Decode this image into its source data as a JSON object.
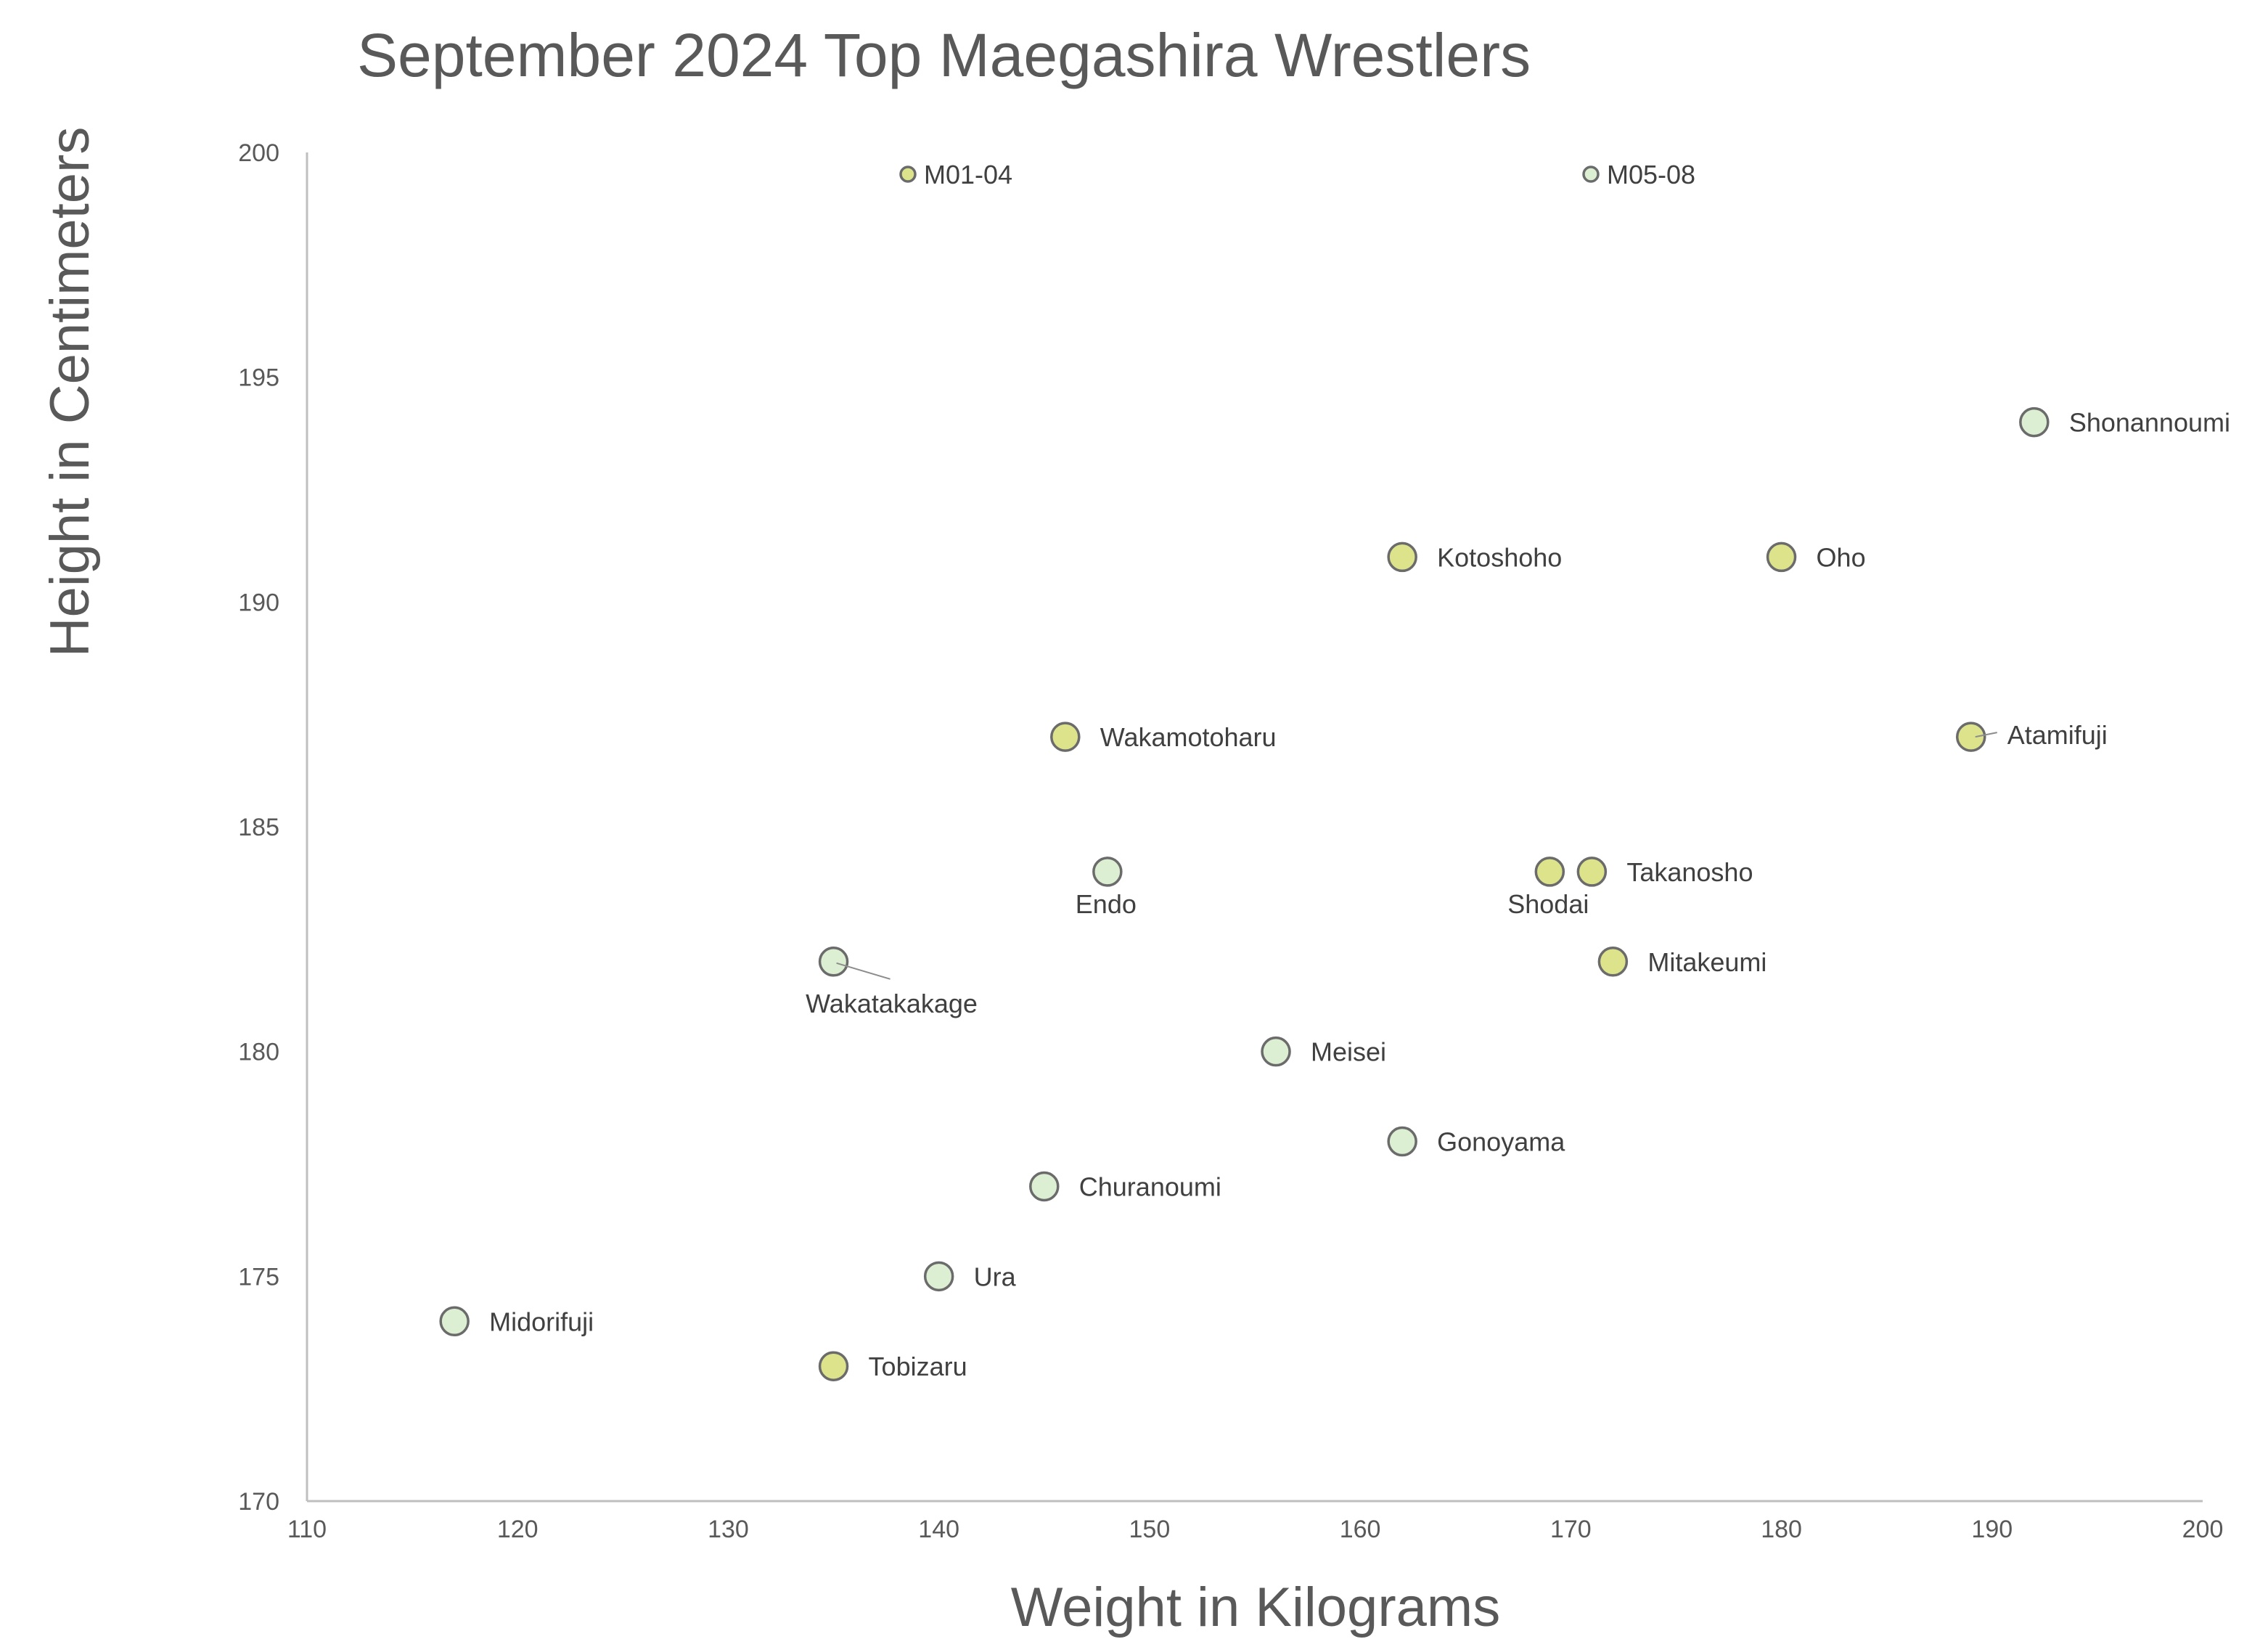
{
  "chart_data": {
    "type": "scatter",
    "title": "September 2024 Top Maegashira Wrestlers",
    "xlabel": "Weight in Kilograms",
    "ylabel": "Height in Centimeters",
    "xlim": [
      110,
      200
    ],
    "ylim": [
      170,
      200
    ],
    "x_ticks": [
      "110",
      "120",
      "130",
      "140",
      "150",
      "160",
      "170",
      "180",
      "190",
      "200"
    ],
    "y_ticks": [
      "170",
      "175",
      "180",
      "185",
      "190",
      "195",
      "200"
    ],
    "grid": false,
    "legend_placement": "top",
    "series": [
      {
        "name": "M01-04",
        "color": "#dde38b",
        "points": [
          {
            "label": "Kotoshoho",
            "x": 162,
            "y": 191
          },
          {
            "label": "Oho",
            "x": 180,
            "y": 191
          },
          {
            "label": "Atamifuji",
            "x": 189,
            "y": 187
          },
          {
            "label": "Wakamotoharu",
            "x": 146,
            "y": 187
          },
          {
            "label": "Shodai",
            "x": 169,
            "y": 184
          },
          {
            "label": "Takanosho",
            "x": 171,
            "y": 184
          },
          {
            "label": "Mitakeumi",
            "x": 172,
            "y": 182
          },
          {
            "label": "Tobizaru",
            "x": 135,
            "y": 173
          }
        ]
      },
      {
        "name": "M05-08",
        "color": "#dcefd2",
        "points": [
          {
            "label": "Shonannoumi",
            "x": 192,
            "y": 194
          },
          {
            "label": "Endo",
            "x": 148,
            "y": 184
          },
          {
            "label": "Wakatakakage",
            "x": 135,
            "y": 182
          },
          {
            "label": "Meisei",
            "x": 156,
            "y": 180
          },
          {
            "label": "Gonoyama",
            "x": 162,
            "y": 178
          },
          {
            "label": "Churanoumi",
            "x": 145,
            "y": 177
          },
          {
            "label": "Ura",
            "x": 140,
            "y": 175
          },
          {
            "label": "Midorifuji",
            "x": 117,
            "y": 174
          }
        ]
      }
    ]
  }
}
